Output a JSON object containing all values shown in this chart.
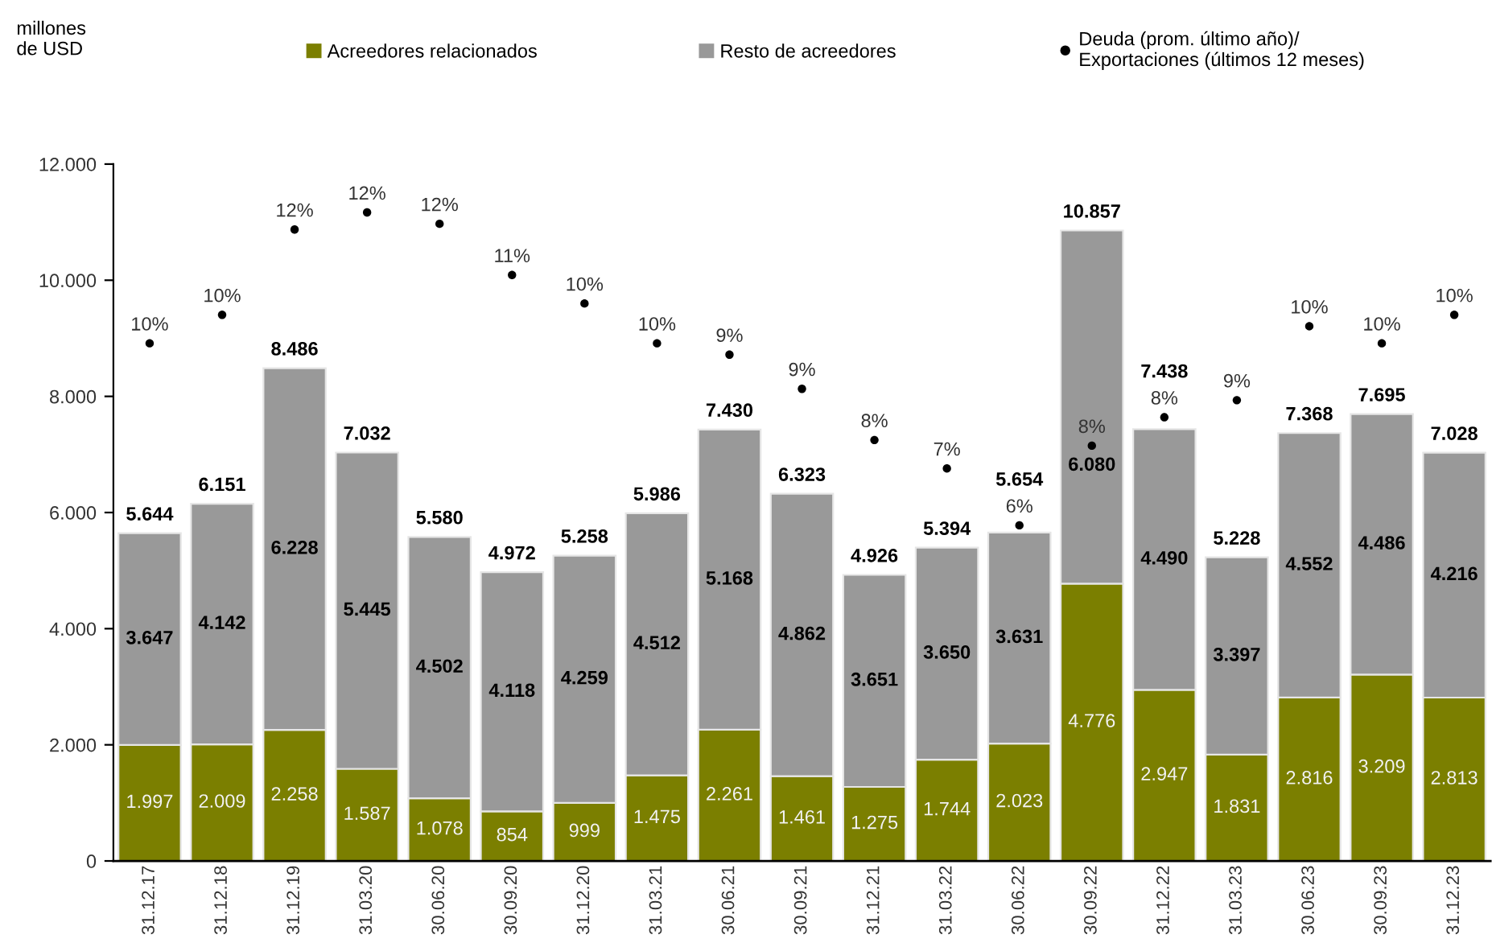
{
  "chart_data": {
    "type": "bar",
    "stacked": true,
    "annotations": [
      "millones\nde USD"
    ],
    "legend": "top",
    "marker": "circle",
    "categories": [
      "31.12.17",
      "31.12.18",
      "31.12.19",
      "31.03.20",
      "30.06.20",
      "30.09.20",
      "31.12.20",
      "31.03.21",
      "30.06.21",
      "30.09.21",
      "31.12.21",
      "31.03.22",
      "30.06.22",
      "30.09.22",
      "31.12.22",
      "31.03.23",
      "30.06.23",
      "30.09.23",
      "31.12.23"
    ],
    "ylim": [
      0,
      12000
    ],
    "yticks": [
      0,
      {
        "value": 2000,
        "label": "2.000"
      },
      {
        "value": 4000,
        "label": "4.000"
      },
      {
        "value": 6000,
        "label": "6.000"
      },
      {
        "value": 8000,
        "label": "8.000"
      },
      {
        "value": 10000,
        "label": "10.000"
      },
      {
        "value": 12000,
        "label": "12.000"
      }
    ],
    "y2lim": [
      0.5,
      12.75
    ],
    "series": [
      {
        "name": "Acreedores relacionados",
        "color": "#7b7f00",
        "values": [
          1997,
          2009,
          2258,
          1587,
          1078,
          854,
          999,
          1475,
          2261,
          1461,
          1275,
          1744,
          2023,
          4776,
          2947,
          1831,
          2816,
          3209,
          2813
        ],
        "value_labels": [
          "1.997",
          "2.009",
          "2.258",
          "1.587",
          "1.078",
          "854",
          "999",
          "1.475",
          "2.261",
          "1.461",
          "1.275",
          "1.744",
          "2.023",
          "4.776",
          "2.947",
          "1.831",
          "2.816",
          "3.209",
          "2.813"
        ]
      },
      {
        "name": "Resto de acreedores",
        "color": "#999999",
        "values": [
          3647,
          4142,
          6228,
          5445,
          4502,
          4118,
          4259,
          4512,
          5168,
          4862,
          3651,
          3650,
          3631,
          6080,
          4490,
          3397,
          4552,
          4486,
          4216
        ],
        "value_labels": [
          "3.647",
          "4.142",
          "6.228",
          "5.445",
          "4.502",
          "4.118",
          "4.259",
          "4.512",
          "5.168",
          "4.862",
          "3.651",
          "3.650",
          "3.631",
          "6.080",
          "4.490",
          "3.397",
          "4.552",
          "4.486",
          "4.216"
        ]
      },
      {
        "name": "Deuda (prom. último año)/\nExportaciones (últimos 12 meses)",
        "type": "scatter",
        "axis": "y2",
        "color": "#000000",
        "values": [
          9.6,
          10.1,
          11.6,
          11.9,
          11.7,
          10.8,
          10.3,
          9.6,
          9.4,
          8.8,
          7.9,
          7.4,
          6.4,
          7.8,
          8.3,
          8.6,
          9.9,
          9.6,
          10.1
        ],
        "value_labels": [
          "10%",
          "10%",
          "12%",
          "12%",
          "12%",
          "11%",
          "10%",
          "10%",
          "9%",
          "9%",
          "8%",
          "7%",
          "6%",
          "8%",
          "8%",
          "9%",
          "10%",
          "10%",
          "10%"
        ]
      }
    ],
    "totals": [
      "5.644",
      "6.151",
      "8.486",
      "7.032",
      "5.580",
      "4.972",
      "5.258",
      "5.986",
      "7.430",
      "6.323",
      "4.926",
      "5.394",
      "5.654",
      "10.857",
      "7.438",
      "5.228",
      "7.368",
      "7.695",
      "7.028"
    ]
  }
}
